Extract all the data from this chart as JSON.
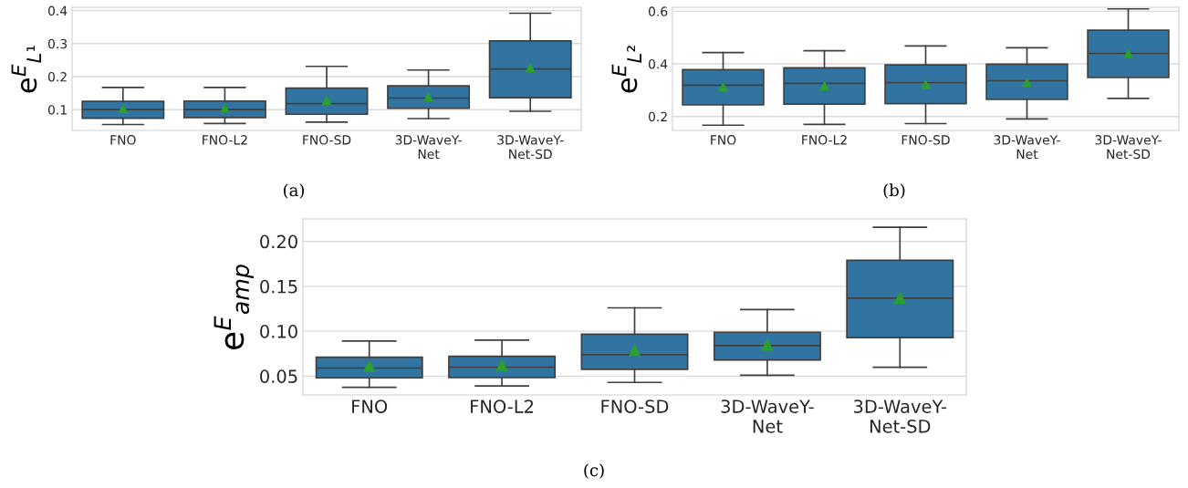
{
  "chart_data": [
    {
      "type": "box",
      "categories": [
        "FNO",
        "FNO-L2",
        "FNO-SD",
        "3D-WaveY-\nNet",
        "3D-WaveY-\nNet-SD"
      ],
      "ylabel": "e$^{E}$$_{L¹}$",
      "ylim": [
        0.037,
        0.41
      ],
      "yticks": [
        0.1,
        0.2,
        0.3,
        0.4
      ],
      "grid": "y",
      "annotations": [
        "(a)"
      ],
      "series": [
        {
          "color": "#3274a1",
          "boxes": [
            {
              "low": 0.055,
              "q1": 0.074,
              "median": 0.1,
              "q3": 0.125,
              "high": 0.167,
              "mean": 0.103
            },
            {
              "low": 0.058,
              "q1": 0.076,
              "median": 0.1,
              "q3": 0.126,
              "high": 0.167,
              "mean": 0.104
            },
            {
              "low": 0.062,
              "q1": 0.086,
              "median": 0.118,
              "q3": 0.165,
              "high": 0.231,
              "mean": 0.128
            },
            {
              "low": 0.073,
              "q1": 0.104,
              "median": 0.135,
              "q3": 0.172,
              "high": 0.22,
              "mean": 0.139
            },
            {
              "low": 0.095,
              "q1": 0.136,
              "median": 0.223,
              "q3": 0.308,
              "high": 0.392,
              "mean": 0.227
            }
          ]
        }
      ]
    },
    {
      "type": "box",
      "categories": [
        "FNO",
        "FNO-L2",
        "FNO-SD",
        "3D-WaveY-\nNet",
        "3D-WaveY-\nNet-SD"
      ],
      "ylabel": "e$^{E}$$_{L²}$",
      "ylim": [
        0.147,
        0.615
      ],
      "yticks": [
        0.2,
        0.4,
        0.6
      ],
      "grid": "y",
      "annotations": [
        "(b)"
      ],
      "series": [
        {
          "color": "#3274a1",
          "boxes": [
            {
              "low": 0.167,
              "q1": 0.244,
              "median": 0.319,
              "q3": 0.378,
              "high": 0.443,
              "mean": 0.311
            },
            {
              "low": 0.17,
              "q1": 0.247,
              "median": 0.326,
              "q3": 0.385,
              "high": 0.45,
              "mean": 0.316
            },
            {
              "low": 0.173,
              "q1": 0.249,
              "median": 0.329,
              "q3": 0.396,
              "high": 0.468,
              "mean": 0.322
            },
            {
              "low": 0.191,
              "q1": 0.265,
              "median": 0.336,
              "q3": 0.399,
              "high": 0.461,
              "mean": 0.329
            },
            {
              "low": 0.269,
              "q1": 0.348,
              "median": 0.44,
              "q3": 0.528,
              "high": 0.609,
              "mean": 0.439
            }
          ]
        }
      ]
    },
    {
      "type": "box",
      "categories": [
        "FNO",
        "FNO-L2",
        "FNO-SD",
        "3D-WaveY-\nNet",
        "3D-WaveY-\nNet-SD"
      ],
      "ylabel": "e$^{E}$$_{amp}$",
      "ylim": [
        0.029,
        0.225
      ],
      "yticks": [
        {
          "value": 0.05,
          "label": "0.05"
        },
        {
          "value": 0.1,
          "label": "0.10"
        },
        {
          "value": 0.15,
          "label": "0.15"
        },
        {
          "value": 0.2,
          "label": "0.20"
        }
      ],
      "grid": "y",
      "annotations": [
        "(c)"
      ],
      "series": [
        {
          "color": "#3274a1",
          "boxes": [
            {
              "low": 0.0375,
              "q1": 0.048,
              "median": 0.059,
              "q3": 0.071,
              "high": 0.089,
              "mean": 0.061
            },
            {
              "low": 0.039,
              "q1": 0.0484,
              "median": 0.06,
              "q3": 0.072,
              "high": 0.09,
              "mean": 0.062
            },
            {
              "low": 0.043,
              "q1": 0.0576,
              "median": 0.0738,
              "q3": 0.0966,
              "high": 0.126,
              "mean": 0.0787
            },
            {
              "low": 0.051,
              "q1": 0.0679,
              "median": 0.084,
              "q3": 0.0988,
              "high": 0.124,
              "mean": 0.0847
            },
            {
              "low": 0.0598,
              "q1": 0.0928,
              "median": 0.1367,
              "q3": 0.179,
              "high": 0.2158,
              "mean": 0.137
            }
          ]
        }
      ]
    }
  ]
}
